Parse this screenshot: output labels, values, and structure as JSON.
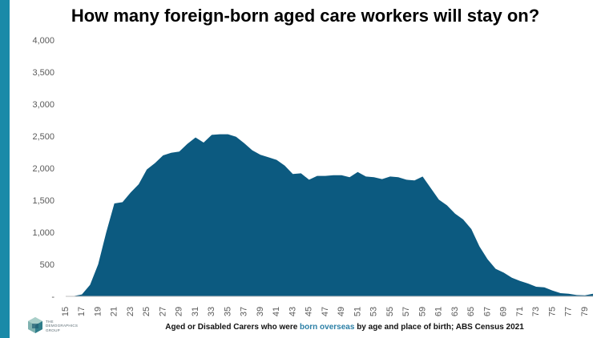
{
  "title": "How many foreign-born aged care workers will stay on?",
  "caption": {
    "before": "Aged or Disabled Carers who were ",
    "highlight": "born overseas",
    "after": " by age and place of birth; ABS Census 2021"
  },
  "logo": {
    "line1": "THE",
    "line2": "DEMOGRAPHICS",
    "line3": "GROUP"
  },
  "colors": {
    "fill": "#0c5a80",
    "side_bar": "#1a8aa8",
    "highlight": "#2b7fa6"
  },
  "chart_data": {
    "type": "area",
    "x": [
      15,
      16,
      17,
      18,
      19,
      20,
      21,
      22,
      23,
      24,
      25,
      26,
      27,
      28,
      29,
      30,
      31,
      32,
      33,
      34,
      35,
      36,
      37,
      38,
      39,
      40,
      41,
      42,
      43,
      44,
      45,
      46,
      47,
      48,
      49,
      50,
      51,
      52,
      53,
      54,
      55,
      56,
      57,
      58,
      59,
      60,
      61,
      62,
      63,
      64,
      65,
      66,
      67,
      68,
      69,
      70,
      71,
      72,
      73,
      74,
      75,
      76,
      77,
      78,
      79,
      80
    ],
    "values": [
      0,
      5,
      30,
      180,
      500,
      1000,
      1450,
      1470,
      1620,
      1750,
      1980,
      2080,
      2200,
      2240,
      2260,
      2380,
      2480,
      2400,
      2520,
      2530,
      2530,
      2490,
      2390,
      2280,
      2210,
      2170,
      2130,
      2040,
      1910,
      1920,
      1820,
      1880,
      1880,
      1890,
      1890,
      1860,
      1940,
      1870,
      1860,
      1830,
      1870,
      1860,
      1820,
      1810,
      1870,
      1690,
      1510,
      1420,
      1290,
      1200,
      1050,
      780,
      580,
      430,
      370,
      290,
      240,
      200,
      150,
      140,
      90,
      50,
      40,
      20,
      15,
      40
    ],
    "xticks": [
      "15",
      "17",
      "19",
      "21",
      "23",
      "25",
      "27",
      "29",
      "31",
      "33",
      "35",
      "37",
      "39",
      "41",
      "43",
      "45",
      "47",
      "49",
      "51",
      "53",
      "55",
      "57",
      "59",
      "61",
      "63",
      "65",
      "67",
      "69",
      "71",
      "73",
      "75",
      "77",
      "79"
    ],
    "yticks": [
      "-",
      "500",
      "1,000",
      "1,500",
      "2,000",
      "2,500",
      "3,000",
      "3,500",
      "4,000"
    ],
    "ylim": [
      0,
      4000
    ],
    "grid": false
  }
}
